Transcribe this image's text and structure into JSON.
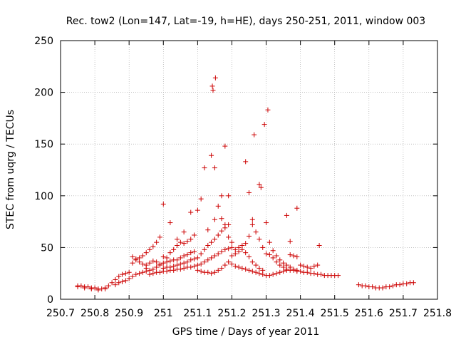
{
  "chart_data": {
    "type": "scatter",
    "title": "Rec. tow2 (Lon=147, Lat=-19, h=HE), days 250-251, 2011, window 003",
    "xlabel": "GPS time / Days of year 2011",
    "ylabel": "STEC from uqrg / TECUs",
    "xlim": [
      250.7,
      251.8
    ],
    "ylim": [
      0,
      250
    ],
    "xticks": [
      250.7,
      250.8,
      250.9,
      251,
      251.1,
      251.2,
      251.3,
      251.4,
      251.5,
      251.6,
      251.7,
      251.8
    ],
    "xtick_labels": [
      "250.7",
      "250.8",
      "250.9",
      "251",
      "251.1",
      "251.2",
      "251.3",
      "251.4",
      "251.5",
      "251.6",
      "251.7",
      "251.8"
    ],
    "yticks": [
      0,
      50,
      100,
      150,
      200,
      250
    ],
    "ytick_labels": [
      "0",
      "50",
      "100",
      "150",
      "200",
      "250"
    ],
    "grid": true,
    "marker": "+",
    "series": [
      {
        "name": "STEC",
        "color": "#cc0000",
        "points": [
          [
            250.75,
            13
          ],
          [
            250.76,
            13
          ],
          [
            250.77,
            12
          ],
          [
            250.78,
            12
          ],
          [
            250.79,
            11
          ],
          [
            250.8,
            11
          ],
          [
            250.81,
            10
          ],
          [
            250.82,
            10
          ],
          [
            250.83,
            11
          ],
          [
            250.84,
            13
          ],
          [
            250.75,
            12
          ],
          [
            250.77,
            11
          ],
          [
            250.79,
            10
          ],
          [
            250.81,
            9
          ],
          [
            250.83,
            10
          ],
          [
            250.85,
            16
          ],
          [
            250.86,
            19
          ],
          [
            250.87,
            22
          ],
          [
            250.88,
            24
          ],
          [
            250.89,
            25
          ],
          [
            250.9,
            26
          ],
          [
            250.86,
            14
          ],
          [
            250.87,
            16
          ],
          [
            250.88,
            17
          ],
          [
            250.89,
            18
          ],
          [
            250.9,
            20
          ],
          [
            250.91,
            22
          ],
          [
            250.92,
            24
          ],
          [
            250.93,
            25
          ],
          [
            250.94,
            26
          ],
          [
            250.95,
            27
          ],
          [
            250.91,
            35
          ],
          [
            250.92,
            38
          ],
          [
            250.93,
            40
          ],
          [
            250.94,
            42
          ],
          [
            250.95,
            45
          ],
          [
            250.96,
            48
          ],
          [
            250.97,
            51
          ],
          [
            250.98,
            55
          ],
          [
            250.99,
            60
          ],
          [
            250.91,
            41
          ],
          [
            250.92,
            39
          ],
          [
            250.93,
            36
          ],
          [
            250.94,
            34
          ],
          [
            250.95,
            33
          ],
          [
            250.96,
            35
          ],
          [
            250.97,
            37
          ],
          [
            250.98,
            36
          ],
          [
            250.99,
            34
          ],
          [
            250.95,
            30
          ],
          [
            250.96,
            28
          ],
          [
            250.97,
            29
          ],
          [
            250.98,
            31
          ],
          [
            250.99,
            33
          ],
          [
            250.96,
            24
          ],
          [
            250.97,
            25
          ],
          [
            250.98,
            26
          ],
          [
            250.99,
            26
          ],
          [
            251.0,
            92
          ],
          [
            251.02,
            74
          ],
          [
            251.04,
            58
          ],
          [
            251.06,
            65
          ],
          [
            251.08,
            84
          ],
          [
            251.1,
            86
          ],
          [
            251.11,
            97
          ],
          [
            251.12,
            127
          ],
          [
            251.14,
            139
          ],
          [
            251.15,
            127
          ],
          [
            251.143,
            206
          ],
          [
            251.145,
            202
          ],
          [
            251.152,
            214
          ],
          [
            251.17,
            100
          ],
          [
            251.18,
            148
          ],
          [
            251.19,
            100
          ],
          [
            251.24,
            133
          ],
          [
            251.25,
            103
          ],
          [
            251.26,
            77
          ],
          [
            251.265,
            159
          ],
          [
            251.28,
            111
          ],
          [
            251.285,
            108
          ],
          [
            251.295,
            169
          ],
          [
            251.305,
            183
          ],
          [
            251.0,
            41
          ],
          [
            251.01,
            40
          ],
          [
            251.02,
            45
          ],
          [
            251.03,
            48
          ],
          [
            251.04,
            52
          ],
          [
            251.05,
            55
          ],
          [
            251.06,
            54
          ],
          [
            251.07,
            56
          ],
          [
            251.08,
            58
          ],
          [
            251.09,
            62
          ],
          [
            251.0,
            35
          ],
          [
            251.01,
            36
          ],
          [
            251.02,
            37
          ],
          [
            251.03,
            38
          ],
          [
            251.04,
            38
          ],
          [
            251.05,
            40
          ],
          [
            251.06,
            42
          ],
          [
            251.07,
            43
          ],
          [
            251.08,
            45
          ],
          [
            251.09,
            46
          ],
          [
            251.0,
            30
          ],
          [
            251.01,
            31
          ],
          [
            251.02,
            31
          ],
          [
            251.03,
            32
          ],
          [
            251.04,
            33
          ],
          [
            251.05,
            34
          ],
          [
            251.06,
            35
          ],
          [
            251.07,
            36
          ],
          [
            251.08,
            38
          ],
          [
            251.09,
            39
          ],
          [
            251.0,
            27
          ],
          [
            251.01,
            27
          ],
          [
            251.02,
            28
          ],
          [
            251.03,
            28
          ],
          [
            251.04,
            29
          ],
          [
            251.05,
            29
          ],
          [
            251.06,
            30
          ],
          [
            251.07,
            31
          ],
          [
            251.08,
            31
          ],
          [
            251.09,
            32
          ],
          [
            251.1,
            28
          ],
          [
            251.11,
            27
          ],
          [
            251.12,
            26
          ],
          [
            251.13,
            26
          ],
          [
            251.14,
            25
          ],
          [
            251.15,
            26
          ],
          [
            251.16,
            28
          ],
          [
            251.17,
            30
          ],
          [
            251.18,
            33
          ],
          [
            251.19,
            36
          ],
          [
            251.1,
            33
          ],
          [
            251.11,
            34
          ],
          [
            251.12,
            36
          ],
          [
            251.13,
            38
          ],
          [
            251.14,
            40
          ],
          [
            251.15,
            42
          ],
          [
            251.16,
            44
          ],
          [
            251.17,
            46
          ],
          [
            251.18,
            48
          ],
          [
            251.19,
            49
          ],
          [
            251.1,
            40
          ],
          [
            251.11,
            44
          ],
          [
            251.12,
            48
          ],
          [
            251.13,
            52
          ],
          [
            251.14,
            55
          ],
          [
            251.15,
            58
          ],
          [
            251.16,
            62
          ],
          [
            251.17,
            66
          ],
          [
            251.18,
            69
          ],
          [
            251.19,
            72
          ],
          [
            251.13,
            67
          ],
          [
            251.15,
            77
          ],
          [
            251.16,
            90
          ],
          [
            251.17,
            78
          ],
          [
            251.18,
            72
          ],
          [
            251.19,
            60
          ],
          [
            251.2,
            55
          ],
          [
            251.2,
            42
          ],
          [
            251.21,
            44
          ],
          [
            251.22,
            46
          ],
          [
            251.23,
            48
          ],
          [
            251.24,
            45
          ],
          [
            251.25,
            41
          ],
          [
            251.26,
            36
          ],
          [
            251.27,
            33
          ],
          [
            251.28,
            30
          ],
          [
            251.29,
            28
          ],
          [
            251.2,
            34
          ],
          [
            251.21,
            32
          ],
          [
            251.22,
            31
          ],
          [
            251.23,
            30
          ],
          [
            251.24,
            29
          ],
          [
            251.25,
            28
          ],
          [
            251.26,
            27
          ],
          [
            251.27,
            26
          ],
          [
            251.28,
            25
          ],
          [
            251.29,
            24
          ],
          [
            251.2,
            50
          ],
          [
            251.21,
            48
          ],
          [
            251.22,
            50
          ],
          [
            251.23,
            52
          ],
          [
            251.24,
            54
          ],
          [
            251.25,
            61
          ],
          [
            251.26,
            72
          ],
          [
            251.27,
            65
          ],
          [
            251.28,
            58
          ],
          [
            251.29,
            50
          ],
          [
            251.3,
            74
          ],
          [
            251.31,
            55
          ],
          [
            251.32,
            47
          ],
          [
            251.33,
            42
          ],
          [
            251.34,
            38
          ],
          [
            251.35,
            35
          ],
          [
            251.36,
            33
          ],
          [
            251.37,
            31
          ],
          [
            251.38,
            29
          ],
          [
            251.39,
            28
          ],
          [
            251.3,
            23
          ],
          [
            251.31,
            23
          ],
          [
            251.32,
            24
          ],
          [
            251.33,
            25
          ],
          [
            251.34,
            26
          ],
          [
            251.35,
            27
          ],
          [
            251.36,
            28
          ],
          [
            251.37,
            28
          ],
          [
            251.38,
            28
          ],
          [
            251.39,
            27
          ],
          [
            251.3,
            44
          ],
          [
            251.31,
            43
          ],
          [
            251.32,
            40
          ],
          [
            251.33,
            36
          ],
          [
            251.34,
            33
          ],
          [
            251.35,
            31
          ],
          [
            251.36,
            29
          ],
          [
            251.37,
            43
          ],
          [
            251.38,
            42
          ],
          [
            251.39,
            41
          ],
          [
            251.36,
            81
          ],
          [
            251.37,
            56
          ],
          [
            251.39,
            88
          ],
          [
            251.455,
            52
          ],
          [
            251.4,
            27
          ],
          [
            251.41,
            26
          ],
          [
            251.42,
            26
          ],
          [
            251.43,
            25
          ],
          [
            251.44,
            25
          ],
          [
            251.45,
            24
          ],
          [
            251.46,
            24
          ],
          [
            251.47,
            23
          ],
          [
            251.48,
            23
          ],
          [
            251.49,
            23
          ],
          [
            251.5,
            23
          ],
          [
            251.51,
            23
          ],
          [
            251.4,
            33
          ],
          [
            251.41,
            32
          ],
          [
            251.42,
            31
          ],
          [
            251.43,
            30
          ],
          [
            251.44,
            32
          ],
          [
            251.45,
            33
          ],
          [
            251.57,
            14
          ],
          [
            251.58,
            13
          ],
          [
            251.59,
            13
          ],
          [
            251.6,
            12
          ],
          [
            251.61,
            12
          ],
          [
            251.62,
            11
          ],
          [
            251.63,
            11
          ],
          [
            251.64,
            11
          ],
          [
            251.65,
            12
          ],
          [
            251.66,
            12
          ],
          [
            251.67,
            13
          ],
          [
            251.68,
            14
          ],
          [
            251.69,
            14
          ],
          [
            251.7,
            15
          ],
          [
            251.71,
            15
          ],
          [
            251.72,
            16
          ],
          [
            251.73,
            16
          ]
        ]
      }
    ]
  }
}
